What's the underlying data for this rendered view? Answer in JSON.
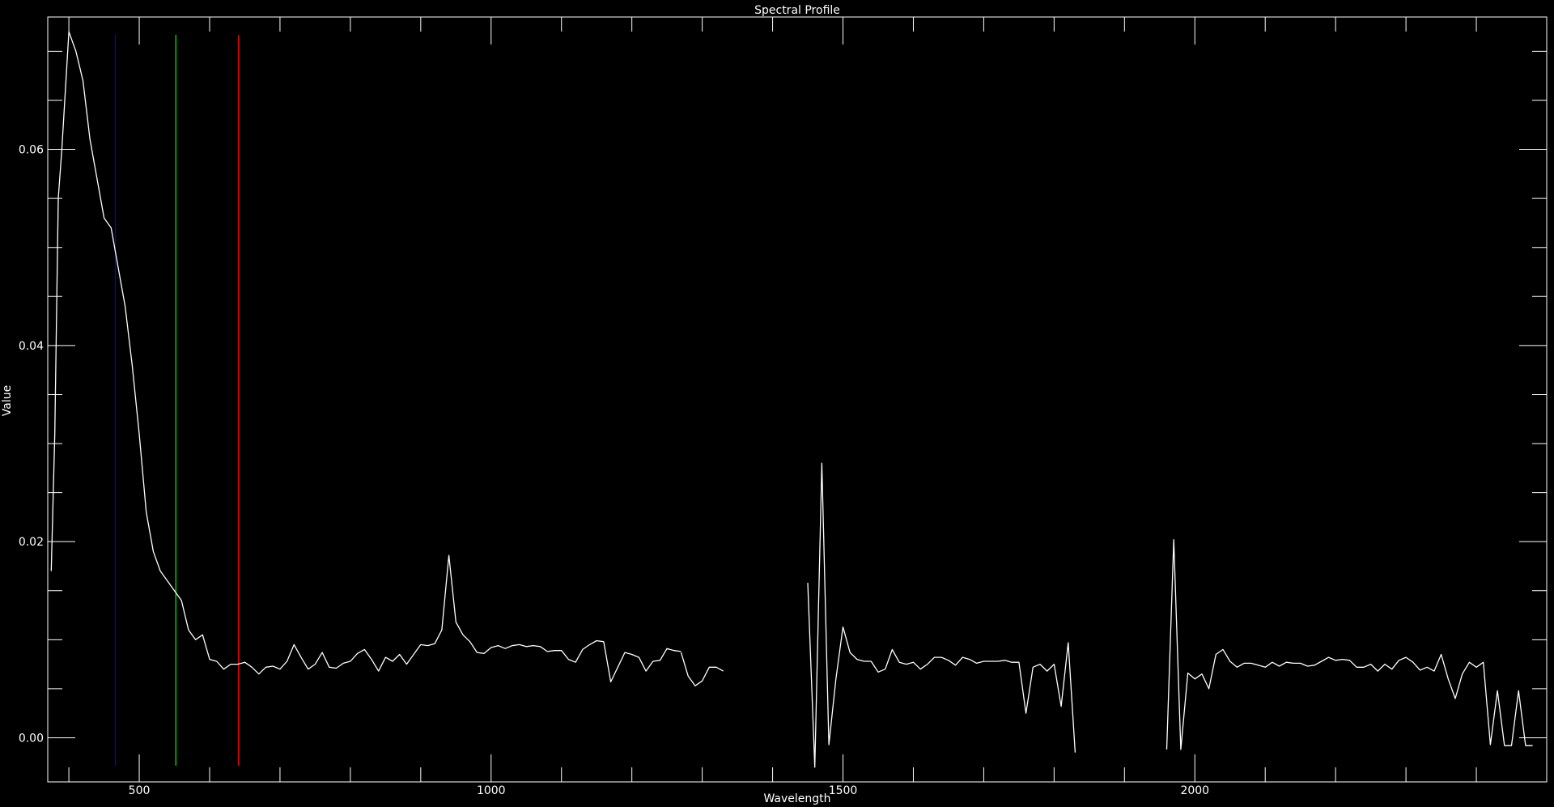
{
  "chart_data": {
    "type": "line",
    "title": "Spectral Profile",
    "xlabel": "Wavelength",
    "ylabel": "Value",
    "xlim": [
      370,
      2500
    ],
    "ylim": [
      -0.0045,
      0.0735
    ],
    "x_major_ticks": [
      500,
      1000,
      1500,
      2000
    ],
    "x_tick_labels": [
      "500",
      "1000",
      "1500",
      "2000"
    ],
    "x_minor_ticks": [
      400,
      600,
      700,
      800,
      900,
      1100,
      1200,
      1300,
      1400,
      1600,
      1700,
      1800,
      1900,
      2100,
      2200,
      2300,
      2400
    ],
    "y_major_ticks": [
      0.0,
      0.02,
      0.04,
      0.06
    ],
    "y_tick_labels": [
      "0.00",
      "0.02",
      "0.04",
      "0.06"
    ],
    "y_minor_ticks": [
      0.005,
      0.01,
      0.015,
      0.025,
      0.03,
      0.035,
      0.045,
      0.05,
      0.055,
      0.065,
      0.07
    ],
    "grid": false,
    "background": "#000000",
    "foreground": "#ffffff",
    "band_markers": [
      {
        "x": 466,
        "color": "#0000ff"
      },
      {
        "x": 552,
        "color": "#00ff00"
      },
      {
        "x": 641,
        "color": "#ff0000"
      }
    ],
    "series": [
      {
        "color": "#ffffff",
        "segments": [
          [
            [
              375,
              0.017
            ],
            [
              380,
              0.031
            ],
            [
              385,
              0.055
            ],
            [
              390,
              0.06
            ],
            [
              400,
              0.072
            ],
            [
              410,
              0.07
            ],
            [
              420,
              0.067
            ],
            [
              430,
              0.061
            ],
            [
              440,
              0.057
            ],
            [
              450,
              0.053
            ],
            [
              460,
              0.052
            ],
            [
              470,
              0.048
            ],
            [
              480,
              0.044
            ],
            [
              490,
              0.038
            ],
            [
              500,
              0.031
            ],
            [
              510,
              0.023
            ],
            [
              520,
              0.019
            ],
            [
              530,
              0.017
            ],
            [
              540,
              0.016
            ],
            [
              550,
              0.015
            ],
            [
              560,
              0.014
            ],
            [
              570,
              0.011
            ],
            [
              580,
              0.01
            ],
            [
              590,
              0.0105
            ],
            [
              600,
              0.008
            ],
            [
              610,
              0.0078
            ],
            [
              620,
              0.007
            ],
            [
              630,
              0.0075
            ],
            [
              640,
              0.0075
            ],
            [
              650,
              0.0077
            ],
            [
              660,
              0.0072
            ],
            [
              670,
              0.0065
            ],
            [
              680,
              0.0072
            ],
            [
              690,
              0.0073
            ],
            [
              700,
              0.007
            ],
            [
              710,
              0.0078
            ],
            [
              720,
              0.0095
            ],
            [
              730,
              0.0082
            ],
            [
              740,
              0.007
            ],
            [
              750,
              0.0075
            ],
            [
              760,
              0.0087
            ],
            [
              770,
              0.0072
            ],
            [
              780,
              0.0071
            ],
            [
              790,
              0.0076
            ],
            [
              800,
              0.0078
            ],
            [
              810,
              0.0086
            ],
            [
              820,
              0.009
            ],
            [
              830,
              0.008
            ],
            [
              840,
              0.0068
            ],
            [
              850,
              0.0082
            ],
            [
              860,
              0.0078
            ],
            [
              870,
              0.0085
            ],
            [
              880,
              0.0075
            ],
            [
              890,
              0.0085
            ],
            [
              900,
              0.0095
            ],
            [
              910,
              0.0094
            ],
            [
              920,
              0.0096
            ],
            [
              930,
              0.011
            ],
            [
              940,
              0.0186
            ],
            [
              950,
              0.0118
            ],
            [
              960,
              0.0105
            ],
            [
              970,
              0.0098
            ],
            [
              980,
              0.0087
            ],
            [
              990,
              0.0086
            ],
            [
              1000,
              0.0092
            ],
            [
              1010,
              0.0094
            ],
            [
              1020,
              0.0091
            ],
            [
              1030,
              0.0094
            ],
            [
              1040,
              0.0095
            ],
            [
              1050,
              0.0093
            ],
            [
              1060,
              0.0094
            ],
            [
              1070,
              0.0093
            ],
            [
              1080,
              0.0088
            ],
            [
              1090,
              0.0089
            ],
            [
              1100,
              0.0089
            ],
            [
              1110,
              0.008
            ],
            [
              1120,
              0.0077
            ],
            [
              1130,
              0.009
            ],
            [
              1140,
              0.0095
            ],
            [
              1150,
              0.0099
            ],
            [
              1160,
              0.0098
            ],
            [
              1170,
              0.0057
            ],
            [
              1180,
              0.0072
            ],
            [
              1190,
              0.0087
            ],
            [
              1200,
              0.0085
            ],
            [
              1210,
              0.0082
            ],
            [
              1220,
              0.0068
            ],
            [
              1230,
              0.0078
            ],
            [
              1240,
              0.0079
            ],
            [
              1250,
              0.0091
            ],
            [
              1260,
              0.0089
            ],
            [
              1270,
              0.0088
            ]
          ],
          [
            [
              1270,
              0.0087
            ],
            [
              1280,
              0.0063
            ],
            [
              1290,
              0.0053
            ],
            [
              1300,
              0.0058
            ],
            [
              1310,
              0.0072
            ],
            [
              1320,
              0.0072
            ],
            [
              1330,
              0.0068
            ]
          ],
          [
            [
              1450,
              0.0158
            ],
            [
              1460,
              -0.003
            ],
            [
              1470,
              0.028
            ],
            [
              1480,
              -0.0007
            ],
            [
              1490,
              0.006
            ],
            [
              1500,
              0.0113
            ],
            [
              1510,
              0.0087
            ],
            [
              1520,
              0.008
            ],
            [
              1530,
              0.0078
            ],
            [
              1540,
              0.0078
            ],
            [
              1550,
              0.0067
            ],
            [
              1560,
              0.007
            ],
            [
              1570,
              0.009
            ],
            [
              1580,
              0.0077
            ],
            [
              1590,
              0.0075
            ],
            [
              1600,
              0.0077
            ],
            [
              1610,
              0.007
            ],
            [
              1620,
              0.0075
            ],
            [
              1630,
              0.0082
            ],
            [
              1640,
              0.0082
            ],
            [
              1650,
              0.0079
            ],
            [
              1660,
              0.0074
            ],
            [
              1670,
              0.0082
            ],
            [
              1680,
              0.008
            ],
            [
              1690,
              0.0076
            ],
            [
              1700,
              0.0078
            ],
            [
              1710,
              0.0078
            ],
            [
              1720,
              0.0078
            ],
            [
              1730,
              0.0079
            ],
            [
              1740,
              0.0077
            ],
            [
              1750,
              0.0077
            ],
            [
              1760,
              0.0025
            ],
            [
              1770,
              0.0072
            ],
            [
              1780,
              0.0075
            ],
            [
              1790,
              0.0068
            ],
            [
              1800,
              0.0075
            ],
            [
              1810,
              0.0032
            ],
            [
              1820,
              0.0097
            ],
            [
              1830,
              -0.0015
            ]
          ],
          [
            [
              1960,
              -0.0012
            ],
            [
              1970,
              0.0202
            ],
            [
              1980,
              -0.0012
            ],
            [
              1990,
              0.0066
            ],
            [
              2000,
              0.006
            ],
            [
              2010,
              0.0065
            ],
            [
              2020,
              0.005
            ],
            [
              2030,
              0.0085
            ],
            [
              2040,
              0.009
            ],
            [
              2050,
              0.0078
            ],
            [
              2060,
              0.0072
            ],
            [
              2070,
              0.0076
            ],
            [
              2080,
              0.0076
            ],
            [
              2090,
              0.0074
            ],
            [
              2100,
              0.0072
            ],
            [
              2110,
              0.0077
            ],
            [
              2120,
              0.0073
            ],
            [
              2130,
              0.0077
            ],
            [
              2140,
              0.0076
            ],
            [
              2150,
              0.0076
            ],
            [
              2160,
              0.0073
            ],
            [
              2170,
              0.0074
            ],
            [
              2180,
              0.0078
            ],
            [
              2190,
              0.0082
            ],
            [
              2200,
              0.0079
            ],
            [
              2210,
              0.008
            ],
            [
              2220,
              0.0079
            ],
            [
              2230,
              0.0072
            ],
            [
              2240,
              0.0072
            ],
            [
              2250,
              0.0075
            ],
            [
              2260,
              0.0068
            ],
            [
              2270,
              0.0075
            ],
            [
              2280,
              0.007
            ],
            [
              2290,
              0.0079
            ],
            [
              2300,
              0.0082
            ],
            [
              2310,
              0.0077
            ],
            [
              2320,
              0.0069
            ],
            [
              2330,
              0.0072
            ],
            [
              2340,
              0.0068
            ],
            [
              2350,
              0.0085
            ],
            [
              2360,
              0.006
            ],
            [
              2370,
              0.004
            ],
            [
              2380,
              0.0065
            ],
            [
              2390,
              0.0077
            ],
            [
              2400,
              0.0072
            ],
            [
              2410,
              0.0077
            ],
            [
              2420,
              -0.0007
            ],
            [
              2430,
              0.0048
            ],
            [
              2440,
              -0.0008
            ],
            [
              2450,
              -0.0008
            ],
            [
              2460,
              0.0048
            ],
            [
              2470,
              -0.0008
            ],
            [
              2480,
              -0.0008
            ]
          ]
        ]
      }
    ]
  }
}
